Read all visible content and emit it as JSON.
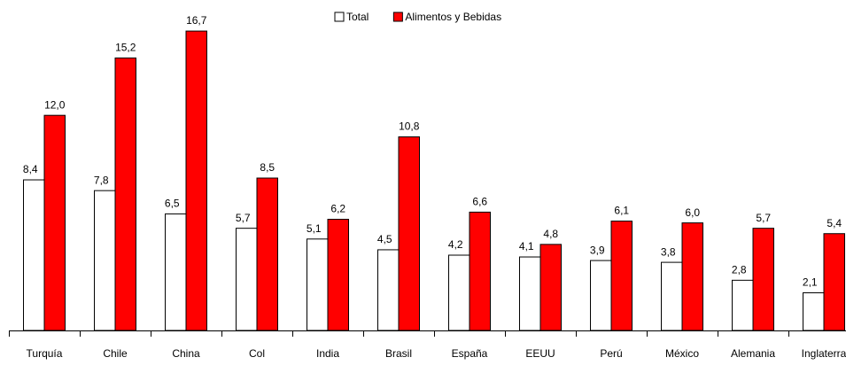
{
  "chart_data": {
    "type": "bar",
    "categories": [
      "Turquía",
      "Chile",
      "China",
      "Col",
      "India",
      "Brasil",
      "España",
      "EEUU",
      "Perú",
      "México",
      "Alemania",
      "Inglaterra"
    ],
    "series": [
      {
        "name": "Total",
        "color": "#ffffff",
        "values": [
          8.4,
          7.8,
          6.5,
          5.7,
          5.1,
          4.5,
          4.2,
          4.1,
          3.9,
          3.8,
          2.8,
          2.1
        ],
        "value_labels": [
          "8,4",
          "7,8",
          "6,5",
          "5,7",
          "5,1",
          "4,5",
          "4,2",
          "4,1",
          "3,9",
          "3,8",
          "2,8",
          "2,1"
        ]
      },
      {
        "name": "Alimentos y Bebidas",
        "color": "#ff0000",
        "values": [
          12.0,
          15.2,
          16.7,
          8.5,
          6.2,
          10.8,
          6.6,
          4.8,
          6.1,
          6.0,
          5.7,
          5.4
        ],
        "value_labels": [
          "12,0",
          "15,2",
          "16,7",
          "8,5",
          "6,2",
          "10,8",
          "6,6",
          "4,8",
          "6,1",
          "6,0",
          "5,7",
          "5,4"
        ]
      }
    ],
    "ylim": [
      0,
      17
    ],
    "legend": "top"
  }
}
